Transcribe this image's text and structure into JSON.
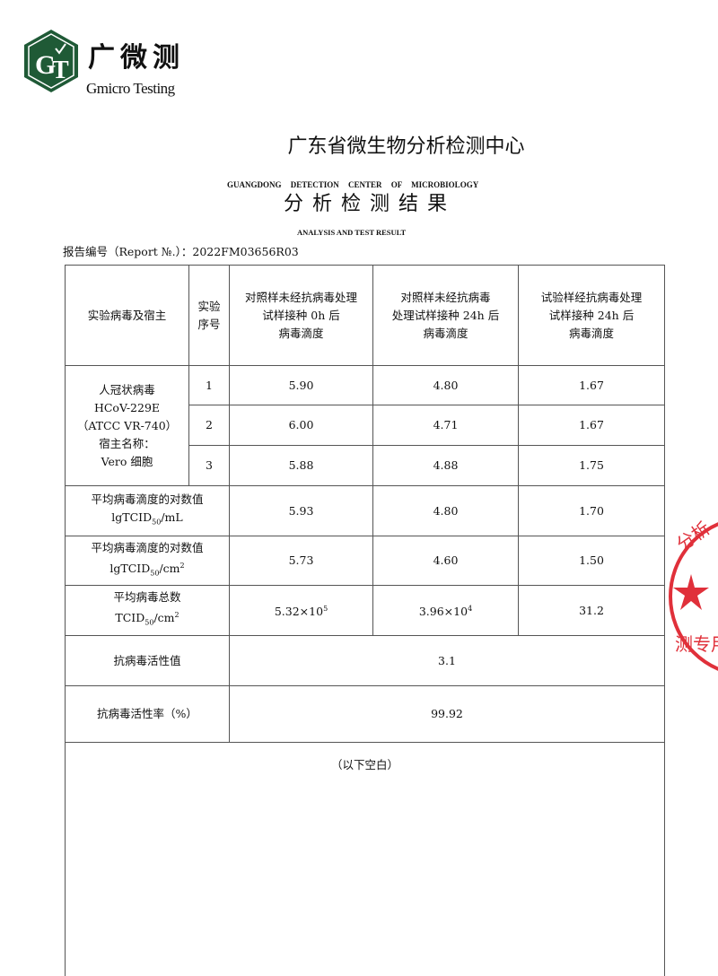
{
  "header": {
    "logo_letters": "GT",
    "brand_cn": "广微测",
    "brand_en": "Gmicro Testing",
    "brand_color": "#1f5a36"
  },
  "title": "广东省微生物分析检测中心",
  "subtitle_en": "GUANGDONG DETECTION CENTER OF MICROBIOLOGY",
  "subtitle_cn": "分析检测结果",
  "subtitle_en2": "ANALYSIS AND TEST RESULT",
  "report_number": "报告编号（Report №.）：2022FM03656R03",
  "table": {
    "headers": [
      "实验病毒及宿主",
      "实验序号",
      "对照样未经抗病毒处理试样接种 0h 后病毒滴度",
      "对照样未经抗病毒处理试样接种 24h 后病毒滴度",
      "试验样经抗病毒处理试样接种 24h 后病毒滴度"
    ],
    "header_lines": {
      "c0": [
        "实验病毒及宿主"
      ],
      "c1": [
        "实验",
        "序号"
      ],
      "c2": [
        "对照样未经抗病毒处理",
        "试样接种 0h 后",
        "病毒滴度"
      ],
      "c3": [
        "对照样未经抗病毒",
        "处理试样接种 24h 后",
        "病毒滴度"
      ],
      "c4": [
        "试验样经抗病毒处理",
        "试样接种 24h 后",
        "病毒滴度"
      ]
    },
    "virus_host": [
      "人冠状病毒",
      "HCoV-229E",
      "（ATCC VR-740）",
      "宿主名称：",
      "Vero 细胞"
    ],
    "rows": [
      {
        "seq": "1",
        "c0h": "5.90",
        "c24h": "4.80",
        "t24h": "1.67"
      },
      {
        "seq": "2",
        "c0h": "6.00",
        "c24h": "4.71",
        "t24h": "1.67"
      },
      {
        "seq": "3",
        "c0h": "5.88",
        "c24h": "4.88",
        "t24h": "1.75"
      }
    ],
    "avg_log_ml": {
      "label1": "平均病毒滴度的对数值",
      "label2": "lgTCID",
      "sub": "50",
      "unit": "/mL",
      "values": [
        "5.93",
        "4.80",
        "1.70"
      ]
    },
    "avg_log_cm2": {
      "label1": "平均病毒滴度的对数值",
      "label2": "lgTCID",
      "sub": "50",
      "unit": "/cm",
      "sup": "2",
      "values": [
        "5.73",
        "4.60",
        "1.50"
      ]
    },
    "avg_total": {
      "label1": "平均病毒总数",
      "label2": "TCID",
      "sub": "50",
      "unit": "/cm",
      "sup": "2",
      "values": [
        {
          "base": "5.32×10",
          "exp": "5"
        },
        {
          "base": "3.96×10",
          "exp": "4"
        },
        {
          "base": "31.2",
          "exp": ""
        }
      ]
    },
    "activity_value": {
      "label": "抗病毒活性值",
      "value": "3.1"
    },
    "activity_rate": {
      "label": "抗病毒活性率（%）",
      "value": "99.92"
    },
    "blank_note": "（以下空白）"
  },
  "stamp": {
    "text": "分析检测专用章",
    "color": "#e0303a"
  },
  "watermark": {
    "text": "Gmicro Testing",
    "color": "#dfe6ee"
  }
}
